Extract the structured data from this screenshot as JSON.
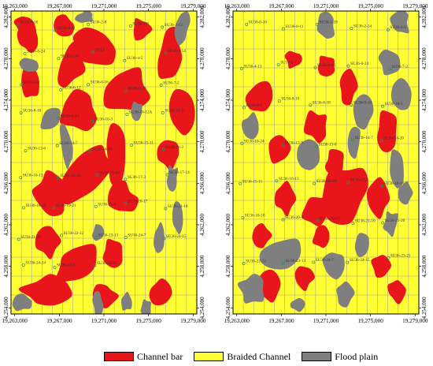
{
  "maps": {
    "left": {
      "top_ticks": [
        "19,263,000",
        "19,267,000",
        "19,271,000",
        "19,275,000",
        "19,279,000"
      ],
      "bottom_ticks": [
        "19,263,000",
        "19,267,000",
        "19,271,000",
        "19,275,000",
        "19,279,000"
      ],
      "left_ticks": [
        "4,282,000",
        "4,278,000",
        "4,274,000",
        "4,270,000",
        "4,266,000",
        "4,262,000",
        "4,258,000",
        "4,254,000"
      ],
      "right_ticks": [
        "4,282,000",
        "4,278,000",
        "4,274,000",
        "4,270,000",
        "4,266,000",
        "4,262,000",
        "4,258,000",
        "4,254,000"
      ],
      "well_labels": [
        "SU36-0-10",
        "SU36-0-21",
        "SU36-2-8",
        "SU36-2-9",
        "SU36-2-13",
        "SU36-0-24",
        "SU36-2-24",
        "SU13",
        "SU36-4-5",
        "SU36-4-14",
        "SU36-6-3",
        "SU36-6-12",
        "SU36-6-16",
        "SU36-6-23",
        "SU36-7-2",
        "SU36-8-10",
        "SU36-8-24",
        "SU36-10-3",
        "SU36-10-12A",
        "SU36-10-21",
        "SU36-13-6",
        "SU36-14-7",
        "SU36-14-20",
        "SU36-15-11",
        "SU36-16-2",
        "SU36-16-13",
        "SU36-16-18",
        "SU36-16-24",
        "SU36-17-3",
        "SU36-17-14",
        "SU36-18-10",
        "SU36-19-21",
        "SU36-20-4",
        "SU36-20-17",
        "SU36-21-10",
        "SU36-21-20",
        "SU36-22-22",
        "SU36-23-13",
        "SU36-24-7",
        "SU36-24-15",
        "SU36-24-24",
        "SU36-23-3",
        "SU36-26-25"
      ]
    },
    "right": {
      "top_ticks": [
        "19,263,000",
        "19,267,000",
        "19,271,000",
        "19,275,000",
        "19,279,000"
      ],
      "bottom_ticks": [
        "19,263,000",
        "19,267,000",
        "19,271,000",
        "19,275,000",
        "19,279,000"
      ],
      "left_ticks": [
        "4,282,000",
        "4,278,000",
        "4,274,000",
        "4,270,000",
        "4,266,000",
        "4,262,000",
        "4,258,000",
        "4,254,000"
      ],
      "right_ticks": [
        "4,282,000",
        "4,278,000",
        "4,274,000",
        "4,270,000",
        "4,266,000",
        "4,262,000",
        "4,258,000",
        "4,254,000"
      ],
      "well_labels": [
        "SU36-0-10",
        "SU36-0-11",
        "SU36-2-19",
        "SU36-2-24",
        "SU36-4-5",
        "SU36-4-13",
        "SU36-5-7",
        "SU36-6-16",
        "SU36-6-23",
        "SU36-7-2",
        "SU36-8-1",
        "SU36-8-10",
        "SU36-8-18",
        "SU36-9-14",
        "SU36-10-3",
        "SU36-10-24",
        "SU36-12-9",
        "SU36-13-6",
        "SU36-14-7",
        "SU36-14-20",
        "SU36-15-11",
        "SU36-16-13",
        "SU36-16-24",
        "SU36-17-3",
        "SU36-18-10",
        "SU36-18-18",
        "SU36-20-4",
        "SU36-20-17",
        "SU36-21-10",
        "SU36-21-20",
        "SU36-22-22",
        "SU36-23-13",
        "SU36-24-7",
        "SU36-24-15",
        "SU36-23-21"
      ]
    }
  },
  "legend": [
    {
      "label": "Channel  bar",
      "color": "#e8161b"
    },
    {
      "label": "Braided Channel",
      "color": "#ffff33"
    },
    {
      "label": "Flood plain",
      "color": "#7f7f7f"
    }
  ],
  "colors": {
    "channel_bar": "#e8161b",
    "braided_channel": "#ffff33",
    "flood_plain": "#7f7f7f",
    "grid": "#9a9a9a",
    "well_marker": "#2e8b57"
  }
}
